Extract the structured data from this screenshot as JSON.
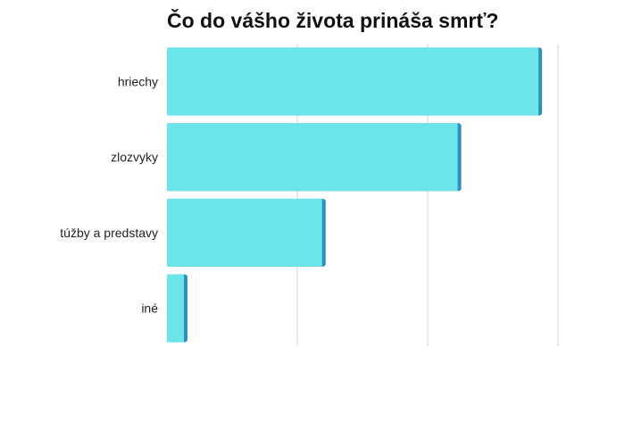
{
  "chart_data": {
    "type": "bar",
    "orientation": "horizontal",
    "title": "Čo do vášho života prináša smrť?",
    "categories": [
      "hriechy",
      "zlozvyky",
      "túžby a predstavy",
      "iné"
    ],
    "values": [
      28.5,
      22.3,
      11.9,
      1.3
    ],
    "xlim": [
      0,
      30
    ],
    "grid": true,
    "legend": "none",
    "colors": {
      "bar_fill": "#6ce5ea",
      "bar_edge": "#2f8fbf",
      "grid": "#d3d3d3"
    }
  }
}
